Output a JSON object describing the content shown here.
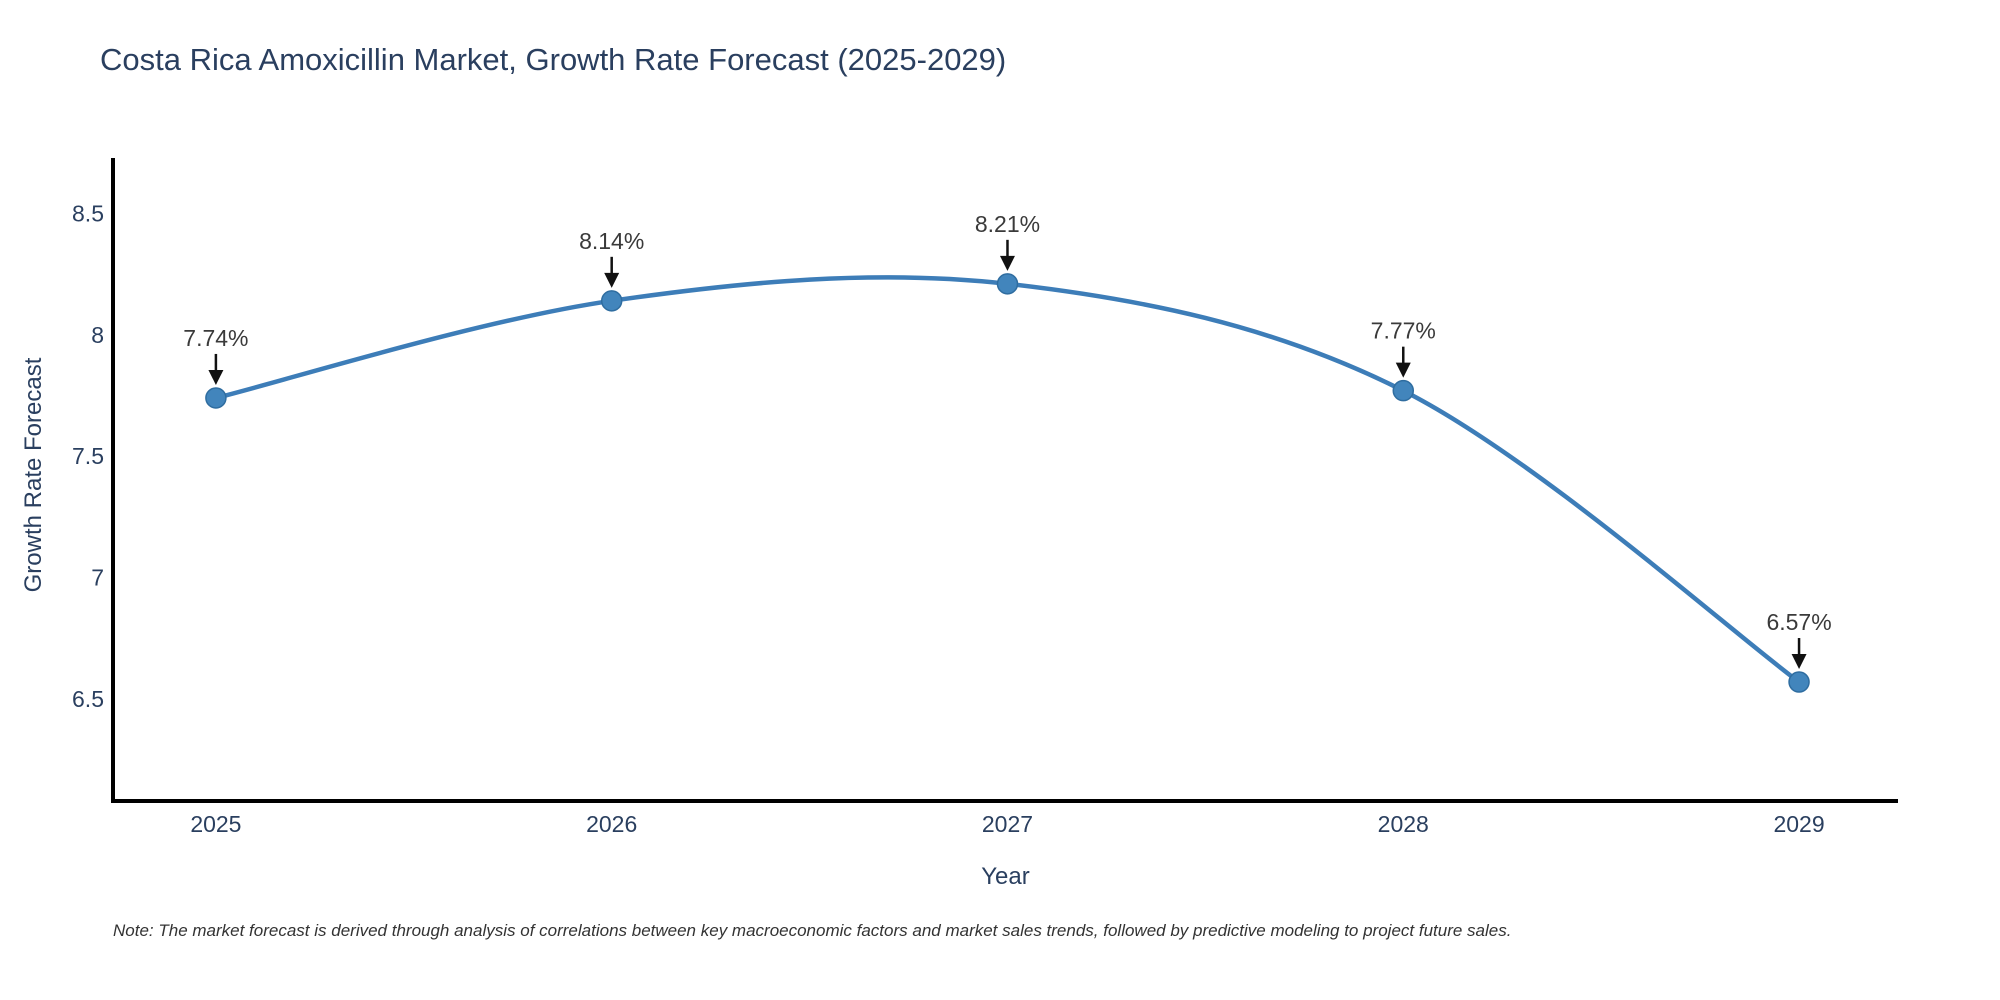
{
  "title": "Costa Rica Amoxicillin Market, Growth Rate Forecast (2025-2029)",
  "note": "Note: The market forecast is derived through analysis of correlations between key macroeconomic factors and market sales trends, followed by predictive modeling to project future sales.",
  "chart_data": {
    "type": "line",
    "title": "Costa Rica Amoxicillin Market, Growth Rate Forecast (2025-2029)",
    "xlabel": "Year",
    "ylabel": "Growth Rate Forecast",
    "x": [
      2025,
      2026,
      2027,
      2028,
      2029
    ],
    "categories": [
      "2025",
      "2026",
      "2027",
      "2028",
      "2029"
    ],
    "series": [
      {
        "name": "Growth Rate Forecast",
        "values": [
          7.74,
          8.14,
          8.21,
          7.77,
          6.57
        ]
      }
    ],
    "point_labels": [
      "7.74%",
      "8.14%",
      "8.21%",
      "7.77%",
      "6.57%"
    ],
    "xlim": [
      2024.74,
      2029.25
    ],
    "ylim": [
      6.08,
      8.72
    ],
    "yticks": [
      6.5,
      7,
      7.5,
      8,
      8.5
    ],
    "ytick_labels": [
      "6.5",
      "7",
      "7.5",
      "8",
      "8.5"
    ],
    "grid": false,
    "legend": "none",
    "line_shape": "spline",
    "colors": {
      "line": "#3d7db8",
      "marker_fill": "#4285bc",
      "marker_edge": "#2f6da0",
      "axis": "#000000",
      "tick_text": "#2a3f5f",
      "title_text": "#2a3f5f",
      "annotation_text": "#3a3a3a",
      "arrow": "#111111",
      "background": "#ffffff"
    }
  }
}
